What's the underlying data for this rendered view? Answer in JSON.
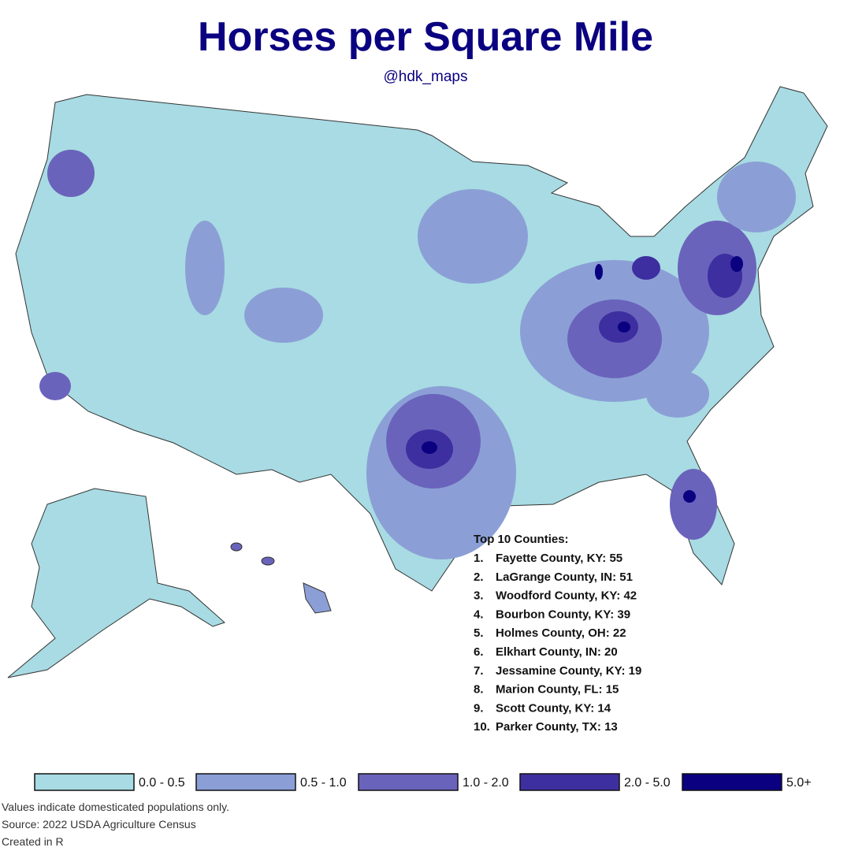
{
  "header": {
    "title": "Horses per Square Mile",
    "subtitle": "@hdk_maps"
  },
  "top_counties": {
    "heading": "Top 10 Counties:",
    "items": [
      {
        "rank": "1.",
        "text": "Fayette County, KY: 55"
      },
      {
        "rank": "2.",
        "text": "LaGrange County, IN: 51"
      },
      {
        "rank": "3.",
        "text": "Woodford County, KY: 42"
      },
      {
        "rank": "4.",
        "text": "Bourbon County, KY: 39"
      },
      {
        "rank": "5.",
        "text": "Holmes County, OH: 22"
      },
      {
        "rank": "6.",
        "text": "Elkhart County, IN: 20"
      },
      {
        "rank": "7.",
        "text": "Jessamine County, KY: 19"
      },
      {
        "rank": "8.",
        "text": "Marion County, FL: 15"
      },
      {
        "rank": "9.",
        "text": "Scott County, KY: 14"
      },
      {
        "rank": "10.",
        "text": "Parker County, TX: 13"
      }
    ]
  },
  "legend": {
    "items": [
      {
        "label": "0.0 - 0.5",
        "color": "#a8dbe3"
      },
      {
        "label": "0.5 - 1.0",
        "color": "#8b9fd6"
      },
      {
        "label": "1.0 - 2.0",
        "color": "#6a63bb"
      },
      {
        "label": "2.0 - 5.0",
        "color": "#3d2fa0"
      },
      {
        "label": "5.0+",
        "color": "#0a0080"
      }
    ]
  },
  "footer": {
    "lines": [
      "Values indicate domesticated populations only.",
      "Source: 2022 USDA Agriculture Census",
      "Created in R"
    ]
  }
}
